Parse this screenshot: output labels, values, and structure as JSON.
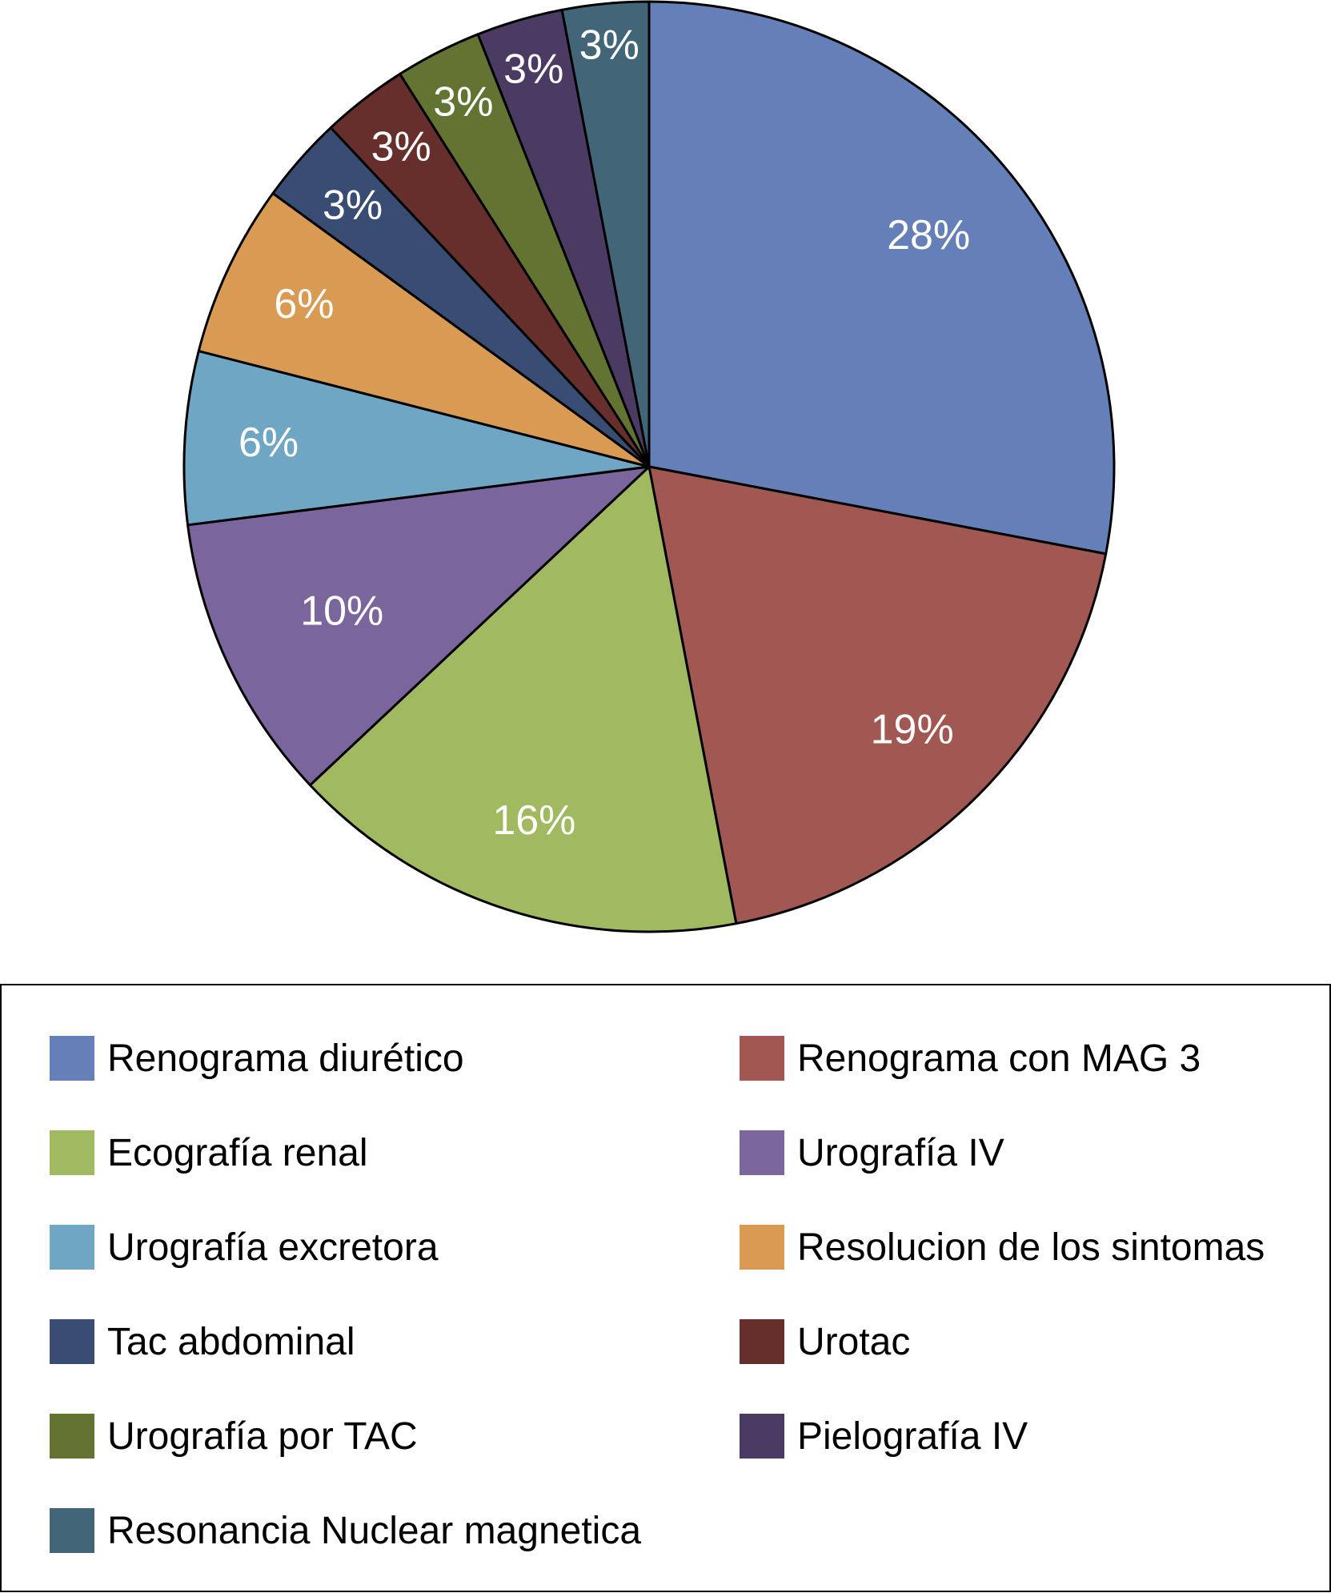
{
  "chart_data": {
    "type": "pie",
    "start_angle_deg": 0,
    "direction": "clockwise",
    "slices": [
      {
        "label": "Renograma diurético",
        "value": 28,
        "display": "28%",
        "color": "#657fb8"
      },
      {
        "label": "Renograma con MAG 3",
        "value": 19,
        "display": "19%",
        "color": "#a25852"
      },
      {
        "label": "Ecografía renal",
        "value": 16,
        "display": "16%",
        "color": "#a1b961"
      },
      {
        "label": "Urografía IV",
        "value": 10,
        "display": "10%",
        "color": "#7a659d"
      },
      {
        "label": "Urografía excretora",
        "value": 6,
        "display": "6%",
        "color": "#6fa6c4"
      },
      {
        "label": "Resolucion de los sintomas",
        "value": 6,
        "display": "6%",
        "color": "#d99b53"
      },
      {
        "label": "Tac abdominal",
        "value": 3,
        "display": "3%",
        "color": "#394c73"
      },
      {
        "label": "Urotac",
        "value": 3,
        "display": "3%",
        "color": "#662f2c"
      },
      {
        "label": "Urografía por TAC",
        "value": 3,
        "display": "3%",
        "color": "#627332"
      },
      {
        "label": "Pielografía IV",
        "value": 3,
        "display": "3%",
        "color": "#4b3b62"
      },
      {
        "label": "Resonancia Nuclear magnetica",
        "value": 3,
        "display": "3%",
        "color": "#426678"
      }
    ],
    "legend": {
      "position": "bottom",
      "items": [
        "Renograma diurético",
        "Renograma con MAG 3",
        "Ecografía renal",
        "Urografía IV",
        "Urografía excretora",
        "Resolucion de los sintomas",
        "Tac abdominal",
        "Urotac",
        "Urografía por TAC",
        "Pielografía IV",
        "Resonancia Nuclear magnetica"
      ]
    }
  }
}
